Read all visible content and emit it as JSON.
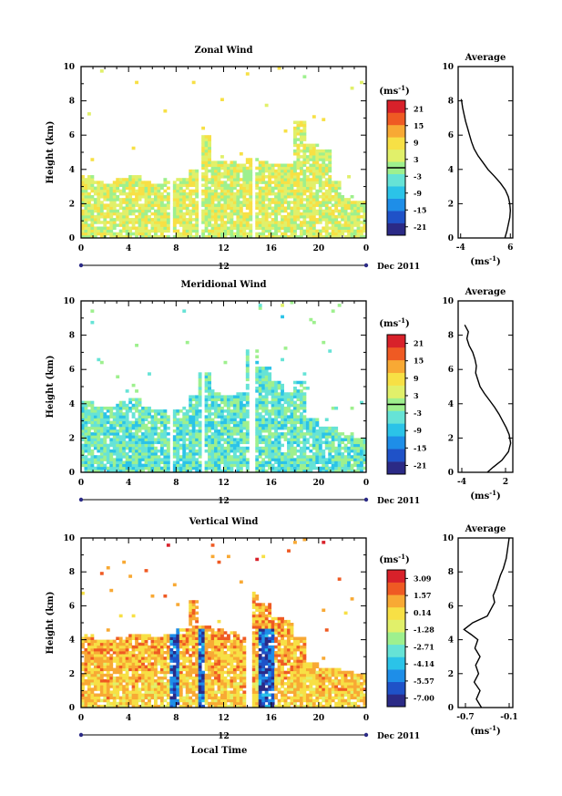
{
  "chart_data": [
    {
      "type": "heatmap",
      "title": "Zonal Wind",
      "ylabel": "Height (km)",
      "ylim": [
        0,
        10
      ],
      "xlim": [
        0,
        24
      ],
      "x_ticks": [
        "0",
        "4",
        "8",
        "12",
        "16",
        "20",
        "0"
      ],
      "y_ticks": [
        "0",
        "2",
        "4",
        "6",
        "8",
        "10"
      ],
      "day_label": "12",
      "date_label": "Dec 2011",
      "colorbar": {
        "unit_text": "(ms",
        "unit_sup": "-1",
        "ticks": [
          "21",
          "15",
          "9",
          "3",
          "-3",
          "-9",
          "-15",
          "-21"
        ],
        "range": [
          -24,
          24
        ],
        "zero_line": true
      },
      "data_top_km": [
        3.7,
        3.4,
        3.3,
        3.5,
        3.6,
        3.3,
        3.2,
        3.4,
        3.5,
        4.0,
        6.0,
        4.5,
        4.5,
        4.4,
        4.6,
        4.5,
        4.4,
        4.3,
        6.9,
        5.5,
        5.2,
        3.4,
        2.5,
        2.2
      ],
      "gaps": [
        [
          7.5,
          7.7
        ],
        [
          10.0,
          10.2
        ],
        [
          14.3,
          14.6
        ]
      ],
      "base_value": 4,
      "average": {
        "title": "Average",
        "xlim": [
          -4.5,
          6.5
        ],
        "x_ticks": [
          "-4",
          "6"
        ],
        "xlabel_text": "(ms",
        "xlabel_sup": "-1",
        "profile_value": [
          4.9,
          5.3,
          5.6,
          5.9,
          6.0,
          5.9,
          5.6,
          5.0,
          4.0,
          2.8,
          1.5,
          0.5,
          -0.5,
          -1.3,
          -1.8,
          -2.2,
          -2.6,
          -3.0,
          -3.3,
          -3.6,
          -3.8,
          -3.9
        ],
        "profile_height": [
          0.0,
          0.4,
          0.8,
          1.2,
          1.6,
          2.0,
          2.4,
          2.8,
          3.2,
          3.6,
          4.0,
          4.4,
          4.8,
          5.2,
          5.6,
          6.0,
          6.4,
          6.8,
          7.2,
          7.6,
          8.0,
          8.1
        ]
      }
    },
    {
      "type": "heatmap",
      "title": "Meridional Wind",
      "ylabel": "Height (km)",
      "ylim": [
        0,
        10
      ],
      "xlim": [
        0,
        24
      ],
      "x_ticks": [
        "0",
        "4",
        "8",
        "12",
        "16",
        "20",
        "0"
      ],
      "y_ticks": [
        "0",
        "2",
        "4",
        "6",
        "8",
        "10"
      ],
      "day_label": "12",
      "date_label": "Dec 2011",
      "colorbar": {
        "unit_text": "(ms",
        "unit_sup": "-1",
        "ticks": [
          "21",
          "15",
          "9",
          "3",
          "-3",
          "-9",
          "-15",
          "-21"
        ],
        "range": [
          -24,
          24
        ],
        "zero_line": true
      },
      "data_top_km": [
        4.1,
        3.9,
        3.9,
        4.1,
        4.3,
        3.9,
        3.6,
        3.6,
        3.7,
        4.5,
        5.9,
        4.6,
        4.5,
        4.6,
        7.2,
        6.1,
        5.3,
        4.6,
        5.4,
        3.1,
        2.7,
        2.6,
        2.3,
        2.0
      ],
      "gaps": [
        [
          7.6,
          7.8
        ],
        [
          10.1,
          10.3
        ],
        [
          14.2,
          14.6
        ]
      ],
      "base_value": -4,
      "average": {
        "title": "Average",
        "xlim": [
          -4.5,
          3.0
        ],
        "x_ticks": [
          "-4",
          "2"
        ],
        "xlabel_text": "(ms",
        "xlabel_sup": "-1",
        "profile_value": [
          -0.5,
          0.3,
          1.5,
          2.4,
          2.7,
          2.5,
          2.1,
          1.6,
          1.1,
          0.5,
          -0.2,
          -0.9,
          -1.5,
          -1.8,
          -2.1,
          -2.0,
          -2.2,
          -2.5,
          -3.0,
          -3.3,
          -3.1,
          -3.6
        ],
        "profile_height": [
          0.0,
          0.3,
          0.7,
          1.2,
          1.7,
          2.2,
          2.6,
          3.0,
          3.4,
          3.8,
          4.2,
          4.6,
          5.0,
          5.4,
          5.8,
          6.2,
          6.6,
          7.0,
          7.4,
          7.8,
          8.2,
          8.6
        ]
      }
    },
    {
      "type": "heatmap",
      "title": "Vertical Wind",
      "ylabel": "Height (km)",
      "xlabel": "Local Time",
      "ylim": [
        0,
        10
      ],
      "xlim": [
        0,
        24
      ],
      "x_ticks": [
        "0",
        "4",
        "8",
        "12",
        "16",
        "20",
        "0"
      ],
      "y_ticks": [
        "0",
        "2",
        "4",
        "6",
        "8",
        "10"
      ],
      "day_label": "12",
      "date_label": "Dec 2011",
      "colorbar": {
        "unit_text": "(ms",
        "unit_sup": "-1",
        "ticks": [
          "3.09",
          "1.57",
          "0.14",
          "-1.28",
          "-2.71",
          "-4.14",
          "-5.57",
          "-7.00"
        ],
        "range": [
          -7.7,
          3.8
        ],
        "zero_line": false
      },
      "data_top_km": [
        4.3,
        4.0,
        4.0,
        4.2,
        4.4,
        4.3,
        4.1,
        4.3,
        4.6,
        6.3,
        4.9,
        4.7,
        4.5,
        4.4,
        6.9,
        6.1,
        5.3,
        5.1,
        4.2,
        2.6,
        2.4,
        2.3,
        2.2,
        2.0
      ],
      "gaps": [
        [
          14.0,
          14.4
        ]
      ],
      "base_value": 0.4,
      "average": {
        "title": "Average",
        "xlim": [
          -0.8,
          -0.05
        ],
        "x_ticks": [
          "-0.7",
          "-0.1"
        ],
        "xlabel_text": "(ms",
        "xlabel_sup": "-1",
        "profile_value": [
          -0.48,
          -0.55,
          -0.5,
          -0.58,
          -0.52,
          -0.56,
          -0.5,
          -0.57,
          -0.53,
          -0.62,
          -0.72,
          -0.6,
          -0.4,
          -0.35,
          -0.3,
          -0.32,
          -0.28,
          -0.25,
          -0.22,
          -0.18,
          -0.14,
          -0.12,
          -0.1
        ],
        "profile_height": [
          0.0,
          0.5,
          1.0,
          1.5,
          2.0,
          2.5,
          3.0,
          3.5,
          4.0,
          4.3,
          4.6,
          5.0,
          5.4,
          5.8,
          6.2,
          6.6,
          7.0,
          7.4,
          7.8,
          8.2,
          8.8,
          9.4,
          10.0
        ]
      }
    }
  ],
  "colors": {
    "scale": [
      "#2b2a86",
      "#1f52c8",
      "#1e8ee8",
      "#2bc3e8",
      "#66e3d6",
      "#9ef08e",
      "#e1f06a",
      "#f7e045",
      "#f8a934",
      "#ef5a23",
      "#d8212a"
    ]
  }
}
